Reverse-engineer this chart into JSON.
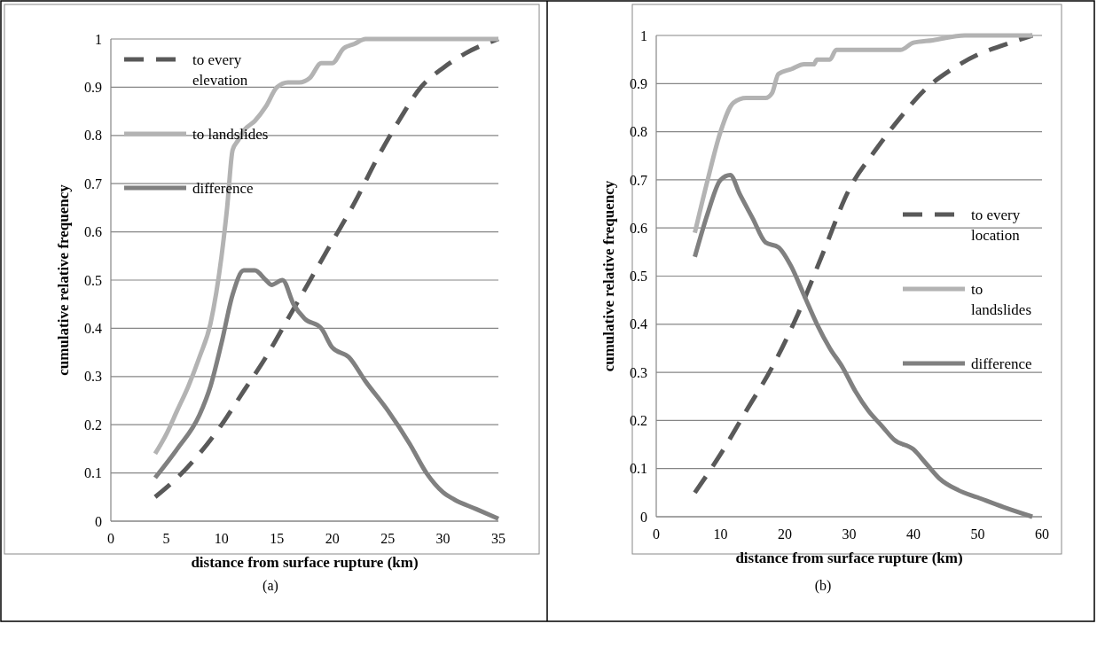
{
  "chart_data": [
    {
      "type": "line",
      "xlabel": "distance from surface rupture (km)",
      "ylabel": "cumulative relative frequency",
      "xlim": [
        0,
        35
      ],
      "xticks": [
        0,
        5,
        10,
        15,
        20,
        25,
        30,
        35
      ],
      "ylim": [
        0,
        1
      ],
      "yticks": [
        0,
        0.1,
        0.2,
        0.3,
        0.4,
        0.5,
        0.6,
        0.7,
        0.8,
        0.9,
        1
      ],
      "grid": "y",
      "legend": "top left",
      "annotations": [
        "(a)"
      ],
      "series": [
        {
          "name": "to every elevation",
          "color": "#595959",
          "line_style": "dashed",
          "x": [
            4,
            6,
            8,
            10,
            12,
            14,
            16,
            18,
            20,
            22,
            24,
            26,
            28,
            30,
            32,
            35
          ],
          "values": [
            0.05,
            0.09,
            0.14,
            0.2,
            0.27,
            0.34,
            0.42,
            0.5,
            0.58,
            0.66,
            0.75,
            0.83,
            0.9,
            0.94,
            0.97,
            1.0
          ]
        },
        {
          "name": "to landslides",
          "color": "#b3b3b3",
          "line_style": "solid",
          "x": [
            4,
            5,
            6,
            7,
            8,
            9,
            10,
            10.5,
            11,
            11.5,
            12,
            13,
            14,
            15,
            16,
            17,
            18,
            19,
            20,
            21,
            22,
            23,
            25,
            35
          ],
          "values": [
            0.14,
            0.18,
            0.23,
            0.28,
            0.34,
            0.41,
            0.55,
            0.65,
            0.77,
            0.79,
            0.81,
            0.83,
            0.86,
            0.9,
            0.91,
            0.91,
            0.92,
            0.95,
            0.95,
            0.98,
            0.99,
            1.0,
            1.0,
            1.0
          ]
        },
        {
          "name": "difference",
          "color": "#808080",
          "line_style": "solid",
          "x": [
            4,
            6,
            8,
            9,
            10,
            11,
            12,
            13,
            14,
            14.5,
            15.5,
            16.5,
            17.5,
            19,
            20,
            21.5,
            23,
            25,
            27,
            28.5,
            30,
            31,
            33,
            35
          ],
          "values": [
            0.09,
            0.15,
            0.22,
            0.28,
            0.37,
            0.47,
            0.52,
            0.52,
            0.5,
            0.49,
            0.5,
            0.45,
            0.42,
            0.4,
            0.36,
            0.34,
            0.29,
            0.23,
            0.16,
            0.1,
            0.06,
            0.045,
            0.025,
            0.005
          ]
        }
      ]
    },
    {
      "type": "line",
      "xlabel": "distance from surface rupture (km)",
      "ylabel": "cumulative relative frequency",
      "xlim": [
        0,
        60
      ],
      "xticks": [
        0,
        10,
        20,
        30,
        40,
        50,
        60
      ],
      "ylim": [
        0,
        1
      ],
      "yticks": [
        0,
        0.1,
        0.2,
        0.3,
        0.4,
        0.5,
        0.6,
        0.7,
        0.8,
        0.9,
        1
      ],
      "grid": "y",
      "legend": "right",
      "annotations": [
        "(b)"
      ],
      "series": [
        {
          "name": "to every location",
          "color": "#595959",
          "line_style": "dashed",
          "x": [
            6,
            10,
            14,
            18,
            22,
            26,
            30,
            34,
            38,
            42,
            46,
            50,
            54,
            58.5
          ],
          "values": [
            0.05,
            0.13,
            0.22,
            0.31,
            0.42,
            0.55,
            0.68,
            0.76,
            0.83,
            0.89,
            0.93,
            0.96,
            0.98,
            1.0
          ]
        },
        {
          "name": "to landslides",
          "color": "#b3b3b3",
          "line_style": "solid",
          "x": [
            6,
            8,
            10,
            12,
            14,
            17,
            18,
            19,
            21,
            23,
            24.5,
            25,
            27,
            28,
            31,
            38,
            40,
            43,
            48,
            58.5
          ],
          "values": [
            0.59,
            0.7,
            0.8,
            0.86,
            0.87,
            0.87,
            0.88,
            0.92,
            0.93,
            0.94,
            0.94,
            0.95,
            0.95,
            0.97,
            0.97,
            0.97,
            0.985,
            0.99,
            1.0,
            1.0
          ]
        },
        {
          "name": "difference",
          "color": "#808080",
          "line_style": "solid",
          "x": [
            6,
            8,
            10,
            11.5,
            13,
            15,
            17,
            19,
            21,
            23,
            25,
            27,
            29,
            31,
            33,
            35,
            37,
            40,
            42,
            44,
            47,
            50,
            54,
            58.5
          ],
          "values": [
            0.54,
            0.63,
            0.7,
            0.71,
            0.67,
            0.62,
            0.57,
            0.56,
            0.52,
            0.46,
            0.4,
            0.35,
            0.31,
            0.26,
            0.22,
            0.19,
            0.16,
            0.14,
            0.11,
            0.08,
            0.055,
            0.04,
            0.02,
            0.0
          ]
        }
      ]
    }
  ]
}
